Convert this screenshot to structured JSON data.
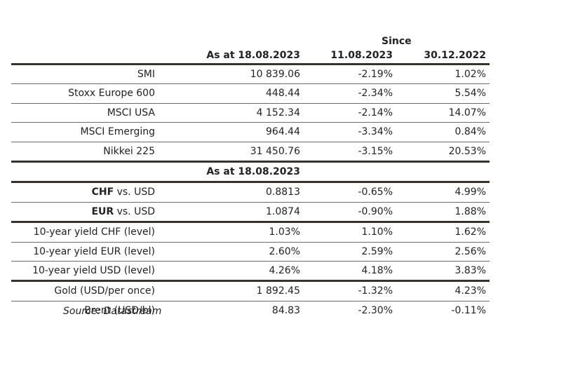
{
  "header": {
    "since": "Since",
    "col1": "As at 18.08.2023",
    "col2": "11.08.2023",
    "col3": "30.12.2022"
  },
  "equities": [
    {
      "name": "SMI",
      "value": "10 839.06",
      "week": "-2.19%",
      "ytd": "1.02%"
    },
    {
      "name": "Stoxx Europe 600",
      "value": "448.44",
      "week": "-2.34%",
      "ytd": "5.54%"
    },
    {
      "name": "MSCI USA",
      "value": "4 152.34",
      "week": "-2.14%",
      "ytd": "14.07%"
    },
    {
      "name": "MSCI Emerging",
      "value": "964.44",
      "week": "-3.34%",
      "ytd": "0.84%"
    },
    {
      "name": "Nikkei 225",
      "value": "31 450.76",
      "week": "-3.15%",
      "ytd": "20.53%"
    }
  ],
  "subheader": "As at 18.08.2023",
  "fx": [
    {
      "bold": "CHF",
      "rest": " vs. USD",
      "value": "0.8813",
      "week": "-0.65%",
      "ytd": "4.99%"
    },
    {
      "bold": "EUR",
      "rest": " vs. USD",
      "value": "1.0874",
      "week": "-0.90%",
      "ytd": "1.88%"
    }
  ],
  "yields": [
    {
      "name": "10-year yield CHF (level)",
      "value": "1.03%",
      "week": "1.10%",
      "ytd": "1.62%"
    },
    {
      "name": "10-year yield EUR (level)",
      "value": "2.60%",
      "week": "2.59%",
      "ytd": "2.56%"
    },
    {
      "name": "10-year yield USD (level)",
      "value": "4.26%",
      "week": "4.18%",
      "ytd": "3.83%"
    }
  ],
  "commodities": [
    {
      "name": "Gold (USD/per once)",
      "value": "1 892.45",
      "week": "-1.32%",
      "ytd": "4.23%"
    },
    {
      "name": "Brent (USD/bl)",
      "value": "84.83",
      "week": "-2.30%",
      "ytd": "-0.11%"
    }
  ],
  "source": "Source: Datastream",
  "colors": {
    "rule": "#3a3228",
    "thin_rule": "#6a6a6a",
    "text": "#222222"
  }
}
